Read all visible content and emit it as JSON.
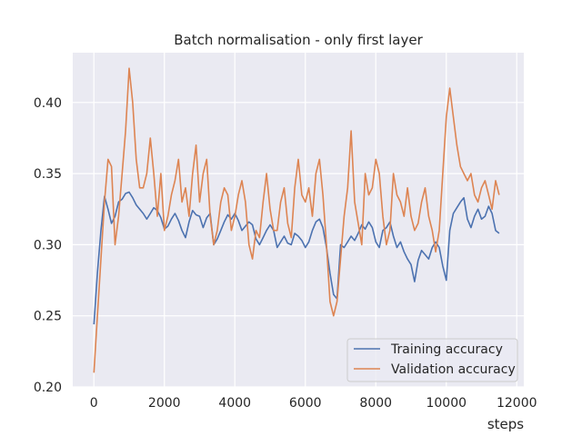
{
  "chart_data": {
    "type": "line",
    "title": "Batch normalisation - only first layer",
    "xlabel": "steps",
    "ylabel": "",
    "xlim": [
      -600,
      12200
    ],
    "ylim": [
      0.2,
      0.435
    ],
    "xticks": [
      0,
      2000,
      4000,
      6000,
      8000,
      10000,
      12000
    ],
    "yticks": [
      0.2,
      0.25,
      0.3,
      0.35,
      0.4
    ],
    "grid": true,
    "legend_position": "lower-right",
    "colors": {
      "background": "#eaeaf2",
      "grid": "#ffffff",
      "training": "#4c72b0",
      "validation": "#dd8452"
    },
    "series": [
      {
        "name": "Training accuracy",
        "x": [
          0,
          100,
          200,
          300,
          400,
          500,
          600,
          700,
          800,
          900,
          1000,
          1100,
          1200,
          1300,
          1400,
          1500,
          1600,
          1700,
          1800,
          1900,
          2000,
          2100,
          2200,
          2300,
          2400,
          2500,
          2600,
          2700,
          2800,
          2900,
          3000,
          3100,
          3200,
          3300,
          3400,
          3500,
          3600,
          3700,
          3800,
          3900,
          4000,
          4100,
          4200,
          4300,
          4400,
          4500,
          4600,
          4700,
          4800,
          4900,
          5000,
          5100,
          5200,
          5300,
          5400,
          5500,
          5600,
          5700,
          5800,
          5900,
          6000,
          6100,
          6200,
          6300,
          6400,
          6500,
          6600,
          6700,
          6800,
          6900,
          7000,
          7100,
          7200,
          7300,
          7400,
          7500,
          7600,
          7700,
          7800,
          7900,
          8000,
          8100,
          8200,
          8300,
          8400,
          8500,
          8600,
          8700,
          8800,
          8900,
          9000,
          9100,
          9200,
          9300,
          9400,
          9500,
          9600,
          9700,
          9800,
          9900,
          10000,
          10100,
          10200,
          10300,
          10400,
          10500,
          10600,
          10700,
          10800,
          10900,
          11000,
          11100,
          11200,
          11300,
          11400,
          11500
        ],
        "values": [
          0.244,
          0.28,
          0.31,
          0.334,
          0.325,
          0.315,
          0.32,
          0.33,
          0.332,
          0.336,
          0.337,
          0.333,
          0.328,
          0.325,
          0.322,
          0.318,
          0.322,
          0.326,
          0.324,
          0.319,
          0.311,
          0.313,
          0.318,
          0.322,
          0.317,
          0.31,
          0.305,
          0.316,
          0.324,
          0.321,
          0.32,
          0.312,
          0.319,
          0.322,
          0.3,
          0.304,
          0.31,
          0.316,
          0.321,
          0.318,
          0.322,
          0.317,
          0.31,
          0.313,
          0.316,
          0.314,
          0.304,
          0.3,
          0.305,
          0.31,
          0.314,
          0.31,
          0.298,
          0.302,
          0.306,
          0.301,
          0.3,
          0.308,
          0.306,
          0.303,
          0.298,
          0.302,
          0.31,
          0.316,
          0.318,
          0.312,
          0.298,
          0.28,
          0.265,
          0.262,
          0.3,
          0.298,
          0.302,
          0.306,
          0.303,
          0.308,
          0.314,
          0.311,
          0.316,
          0.312,
          0.302,
          0.298,
          0.31,
          0.312,
          0.316,
          0.306,
          0.298,
          0.302,
          0.295,
          0.29,
          0.286,
          0.274,
          0.289,
          0.296,
          0.293,
          0.29,
          0.298,
          0.302,
          0.298,
          0.285,
          0.275,
          0.31,
          0.322,
          0.326,
          0.33,
          0.333,
          0.318,
          0.312,
          0.32,
          0.325,
          0.318,
          0.32,
          0.327,
          0.322,
          0.31,
          0.308
        ]
      },
      {
        "name": "Validation accuracy",
        "x": [
          0,
          100,
          200,
          300,
          400,
          500,
          600,
          700,
          800,
          900,
          1000,
          1100,
          1200,
          1300,
          1400,
          1500,
          1600,
          1700,
          1800,
          1900,
          2000,
          2100,
          2200,
          2300,
          2400,
          2500,
          2600,
          2700,
          2800,
          2900,
          3000,
          3100,
          3200,
          3300,
          3400,
          3500,
          3600,
          3700,
          3800,
          3900,
          4000,
          4100,
          4200,
          4300,
          4400,
          4500,
          4600,
          4700,
          4800,
          4900,
          5000,
          5100,
          5200,
          5300,
          5400,
          5500,
          5600,
          5700,
          5800,
          5900,
          6000,
          6100,
          6200,
          6300,
          6400,
          6500,
          6600,
          6700,
          6800,
          6900,
          7000,
          7100,
          7200,
          7300,
          7400,
          7500,
          7600,
          7700,
          7800,
          7900,
          8000,
          8100,
          8200,
          8300,
          8400,
          8500,
          8600,
          8700,
          8800,
          8900,
          9000,
          9100,
          9200,
          9300,
          9400,
          9500,
          9600,
          9700,
          9800,
          9900,
          10000,
          10100,
          10200,
          10300,
          10400,
          10500,
          10600,
          10700,
          10800,
          10900,
          11000,
          11100,
          11200,
          11300,
          11400,
          11500
        ],
        "values": [
          0.21,
          0.25,
          0.29,
          0.33,
          0.36,
          0.355,
          0.3,
          0.32,
          0.35,
          0.38,
          0.424,
          0.4,
          0.36,
          0.34,
          0.34,
          0.35,
          0.375,
          0.35,
          0.32,
          0.35,
          0.31,
          0.32,
          0.335,
          0.345,
          0.36,
          0.33,
          0.34,
          0.32,
          0.35,
          0.37,
          0.33,
          0.35,
          0.36,
          0.32,
          0.3,
          0.31,
          0.33,
          0.34,
          0.335,
          0.31,
          0.32,
          0.335,
          0.345,
          0.33,
          0.3,
          0.29,
          0.31,
          0.305,
          0.33,
          0.35,
          0.325,
          0.31,
          0.31,
          0.33,
          0.34,
          0.315,
          0.305,
          0.34,
          0.36,
          0.335,
          0.33,
          0.34,
          0.32,
          0.35,
          0.36,
          0.335,
          0.3,
          0.26,
          0.25,
          0.26,
          0.29,
          0.32,
          0.34,
          0.38,
          0.33,
          0.315,
          0.3,
          0.35,
          0.335,
          0.34,
          0.36,
          0.35,
          0.32,
          0.3,
          0.31,
          0.35,
          0.335,
          0.33,
          0.32,
          0.34,
          0.32,
          0.31,
          0.315,
          0.33,
          0.34,
          0.32,
          0.31,
          0.295,
          0.31,
          0.35,
          0.39,
          0.41,
          0.39,
          0.37,
          0.355,
          0.35,
          0.345,
          0.35,
          0.335,
          0.33,
          0.34,
          0.345,
          0.335,
          0.325,
          0.345,
          0.335
        ]
      }
    ]
  }
}
